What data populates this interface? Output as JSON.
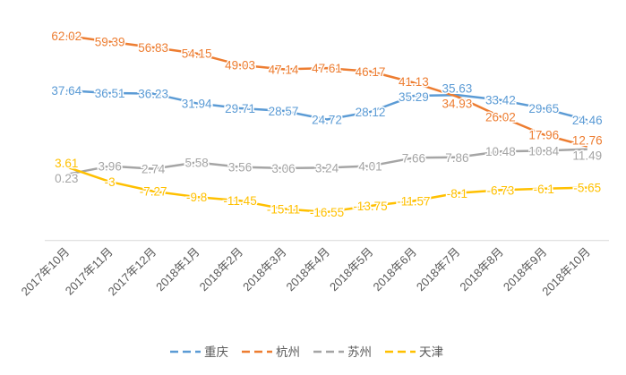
{
  "chart_data": {
    "type": "line",
    "categories": [
      "2017年10月",
      "2017年11月",
      "2017年12月",
      "2018年1月",
      "2018年2月",
      "2018年3月",
      "2018年4月",
      "2018年5月",
      "2018年6月",
      "2018年7月",
      "2018年8月",
      "2018年9月",
      "2018年10月"
    ],
    "series": [
      {
        "name": "重庆",
        "color": "#5B9BD5",
        "values": [
          37.64,
          36.51,
          36.23,
          31.94,
          29.71,
          28.57,
          24.72,
          28.12,
          35.29,
          35.63,
          33.42,
          29.65,
          24.46
        ]
      },
      {
        "name": "杭州",
        "color": "#ED7D31",
        "values": [
          62.02,
          59.39,
          56.83,
          54.15,
          49.03,
          47.14,
          47.61,
          46.17,
          41.13,
          34.93,
          26.02,
          17.96,
          12.76
        ]
      },
      {
        "name": "苏州",
        "color": "#A5A5A5",
        "values": [
          0.23,
          3.96,
          2.74,
          5.58,
          3.56,
          3.06,
          3.24,
          4.01,
          7.66,
          7.86,
          10.48,
          10.84,
          11.49
        ]
      },
      {
        "name": "天津",
        "color": "#FFC000",
        "values": [
          3.61,
          -3,
          -7.27,
          -9.8,
          -11.45,
          -15.11,
          -16.55,
          -13.75,
          -11.57,
          -8.1,
          -6.73,
          -6.1,
          -5.65
        ]
      }
    ],
    "ylim": [
      -30,
      70
    ],
    "grid": false,
    "legend": "bottom",
    "data_labels": true
  }
}
